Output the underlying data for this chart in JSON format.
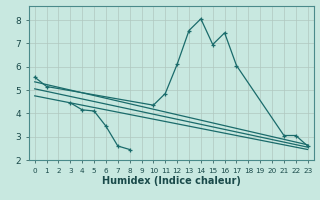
{
  "xlabel": "Humidex (Indice chaleur)",
  "background_color": "#c8e8e0",
  "grid_color": "#b0c8c0",
  "line_color": "#1a6b6b",
  "xlim": [
    -0.5,
    23.5
  ],
  "ylim": [
    2,
    8.6
  ],
  "yticks": [
    2,
    3,
    4,
    5,
    6,
    7,
    8
  ],
  "xticks": [
    0,
    1,
    2,
    3,
    4,
    5,
    6,
    7,
    8,
    9,
    10,
    11,
    12,
    13,
    14,
    15,
    16,
    17,
    18,
    19,
    20,
    21,
    22,
    23
  ],
  "line1_x": [
    0,
    1,
    10,
    11,
    12,
    13,
    14,
    15,
    16,
    17,
    21,
    22,
    23
  ],
  "line1_y": [
    5.55,
    5.15,
    4.35,
    4.85,
    6.1,
    7.55,
    8.05,
    6.95,
    7.45,
    6.05,
    3.05,
    3.05,
    2.6
  ],
  "line2_x": [
    3,
    4,
    5,
    6,
    7,
    8
  ],
  "line2_y": [
    4.45,
    4.15,
    4.1,
    3.45,
    2.6,
    2.45
  ],
  "line3_x": [
    0,
    23
  ],
  "line3_y": [
    5.35,
    2.65
  ],
  "line4_x": [
    0,
    23
  ],
  "line4_y": [
    5.05,
    2.55
  ],
  "line5_x": [
    0,
    23
  ],
  "line5_y": [
    4.75,
    2.45
  ]
}
